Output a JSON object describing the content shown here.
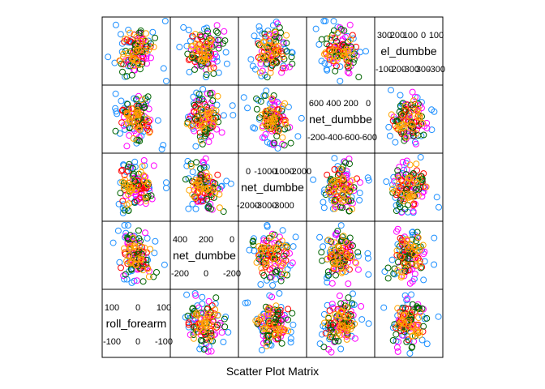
{
  "chart_data": {
    "type": "scatter",
    "title": "Scatter Plot Matrix",
    "grid": false,
    "legend": "none",
    "variables": [
      {
        "label": "roll_forearm",
        "ticks": [
          "100",
          "0",
          "100",
          "-100",
          "0",
          "-100"
        ]
      },
      {
        "label": "net_dumbbe",
        "ticks": [
          "400",
          "200",
          "0",
          "-200",
          "0",
          "-200"
        ]
      },
      {
        "label": "net_dumbbe",
        "ticks": [
          "0",
          "-1000",
          "-1000",
          "-2000",
          "-2000",
          "-3000",
          "-3000"
        ]
      },
      {
        "label": "net_dumbbe",
        "ticks": [
          "600",
          "400",
          "200",
          "0",
          "-200",
          "-400",
          "-600",
          "-600"
        ]
      },
      {
        "label": "el_dumbbe",
        "ticks": [
          "300",
          "200",
          "100",
          "0",
          "100",
          "-100",
          "-200",
          "-300",
          "300",
          "-300"
        ]
      }
    ],
    "class_colors": [
      "#1E90FF",
      "#FF00FF",
      "#FF0000",
      "#006400",
      "#FFA500"
    ],
    "series": [
      {
        "color": "#1E90FF",
        "x": [
          0.32,
          0.35,
          0.37,
          0.42,
          0.28,
          0.9,
          0.88,
          0.15,
          0.5,
          0.55,
          0.62
        ],
        "y": [
          0.3,
          0.5,
          0.7,
          0.2,
          0.8,
          0.95,
          0.1,
          0.45,
          0.6,
          0.35,
          0.75
        ]
      },
      {
        "color": "#FF00FF",
        "x": [
          0.4,
          0.45,
          0.5,
          0.55,
          0.6,
          0.65,
          0.7,
          0.48,
          0.52
        ],
        "y": [
          0.4,
          0.6,
          0.5,
          0.3,
          0.7,
          0.45,
          0.55,
          0.85,
          0.15
        ]
      },
      {
        "color": "#FF0000",
        "x": [
          0.38,
          0.42,
          0.46,
          0.5,
          0.54,
          0.58,
          0.62
        ],
        "y": [
          0.35,
          0.5,
          0.65,
          0.4,
          0.55,
          0.6,
          0.45
        ]
      },
      {
        "color": "#006400",
        "x": [
          0.3,
          0.4,
          0.5,
          0.6,
          0.7,
          0.45,
          0.55
        ],
        "y": [
          0.2,
          0.3,
          0.5,
          0.7,
          0.8,
          0.6,
          0.4
        ]
      },
      {
        "color": "#FFA500",
        "x": [
          0.35,
          0.4,
          0.45,
          0.5,
          0.55,
          0.6,
          0.65,
          0.42,
          0.58,
          0.47,
          0.53
        ],
        "y": [
          0.5,
          0.45,
          0.55,
          0.5,
          0.48,
          0.52,
          0.5,
          0.35,
          0.65,
          0.25,
          0.75
        ]
      }
    ]
  }
}
